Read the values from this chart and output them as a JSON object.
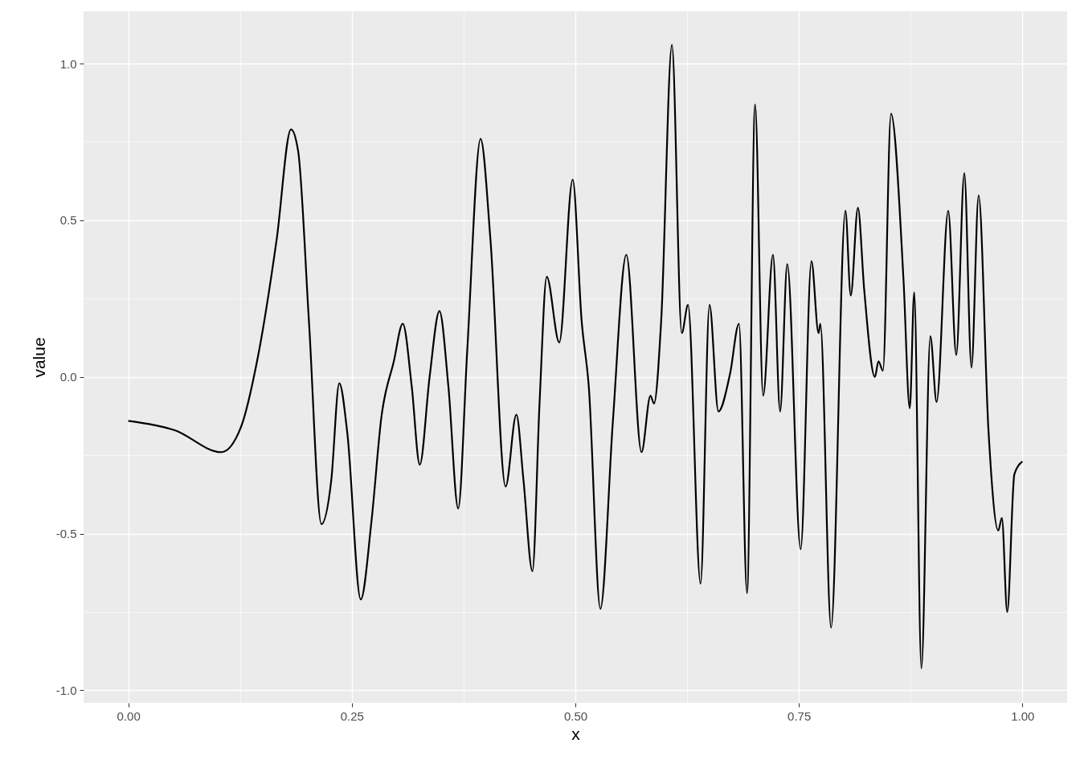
{
  "chart_data": {
    "type": "line",
    "xlabel": "x",
    "ylabel": "value",
    "x": [
      0,
      0.052,
      0.104,
      0.126,
      0.144,
      0.166,
      0.182,
      0.19,
      0.202,
      0.216,
      0.227,
      0.236,
      0.245,
      0.26,
      0.272,
      0.283,
      0.297,
      0.307,
      0.317,
      0.326,
      0.337,
      0.348,
      0.358,
      0.369,
      0.379,
      0.394,
      0.405,
      0.422,
      0.434,
      0.442,
      0.452,
      0.46,
      0.468,
      0.482,
      0.497,
      0.507,
      0.515,
      0.528,
      0.542,
      0.557,
      0.574,
      0.584,
      0.588,
      0.596,
      0.608,
      0.619,
      0.626,
      0.64,
      0.65,
      0.66,
      0.673,
      0.683,
      0.692,
      0.701,
      0.71,
      0.721,
      0.729,
      0.737,
      0.752,
      0.764,
      0.772,
      0.774,
      0.786,
      0.802,
      0.808,
      0.816,
      0.823,
      0.835,
      0.839,
      0.844,
      0.853,
      0.867,
      0.874,
      0.879,
      0.887,
      0.897,
      0.904,
      0.917,
      0.926,
      0.935,
      0.943,
      0.951,
      0.962,
      0.973,
      0.977,
      0.983,
      0.991,
      1.0
    ],
    "series": [
      {
        "color": "#000000",
        "values": [
          -0.14,
          -0.17,
          -0.24,
          -0.16,
          0.05,
          0.44,
          0.79,
          0.72,
          0.18,
          -0.47,
          -0.33,
          -0.02,
          -0.18,
          -0.71,
          -0.46,
          -0.13,
          0.05,
          0.17,
          -0.03,
          -0.28,
          0.0,
          0.21,
          -0.03,
          -0.42,
          0.08,
          0.76,
          0.44,
          -0.35,
          -0.12,
          -0.33,
          -0.62,
          -0.08,
          0.32,
          0.11,
          0.63,
          0.18,
          -0.03,
          -0.74,
          -0.14,
          0.39,
          -0.24,
          -0.06,
          -0.085,
          0.18,
          1.06,
          0.14,
          0.23,
          -0.66,
          0.23,
          -0.11,
          0.01,
          0.17,
          -0.69,
          0.87,
          -0.06,
          0.39,
          -0.11,
          0.36,
          -0.55,
          0.37,
          0.14,
          0.17,
          -0.8,
          0.53,
          0.26,
          0.54,
          0.28,
          0.0,
          0.05,
          0.02,
          0.84,
          0.31,
          -0.1,
          0.27,
          -0.93,
          0.13,
          -0.08,
          0.53,
          0.07,
          0.65,
          0.03,
          0.58,
          -0.17,
          -0.49,
          -0.45,
          -0.75,
          -0.31,
          -0.27
        ]
      }
    ],
    "xlim": [
      -0.05,
      1.05
    ],
    "ylim": [
      -1.04,
      1.167
    ],
    "xticks": [
      {
        "value": 0,
        "label": "0.00"
      },
      {
        "value": 0.125,
        "label": null
      },
      {
        "value": 0.25,
        "label": "0.25"
      },
      {
        "value": 0.375,
        "label": null
      },
      {
        "value": 0.5,
        "label": "0.50"
      },
      {
        "value": 0.625,
        "label": null
      },
      {
        "value": 0.75,
        "label": "0.75"
      },
      {
        "value": 0.875,
        "label": null
      },
      {
        "value": 1,
        "label": "1.00"
      }
    ],
    "yticks": [
      {
        "value": -1,
        "label": "-1.0"
      },
      {
        "value": -0.75,
        "label": null
      },
      {
        "value": -0.5,
        "label": "-0.5"
      },
      {
        "value": -0.25,
        "label": null
      },
      {
        "value": 0,
        "label": "0.0"
      },
      {
        "value": 0.25,
        "label": null
      },
      {
        "value": 0.5,
        "label": "0.5"
      },
      {
        "value": 0.75,
        "label": null
      },
      {
        "value": 1,
        "label": "1.0"
      }
    ],
    "grid": true,
    "line_style": "solid",
    "marker": "none"
  }
}
